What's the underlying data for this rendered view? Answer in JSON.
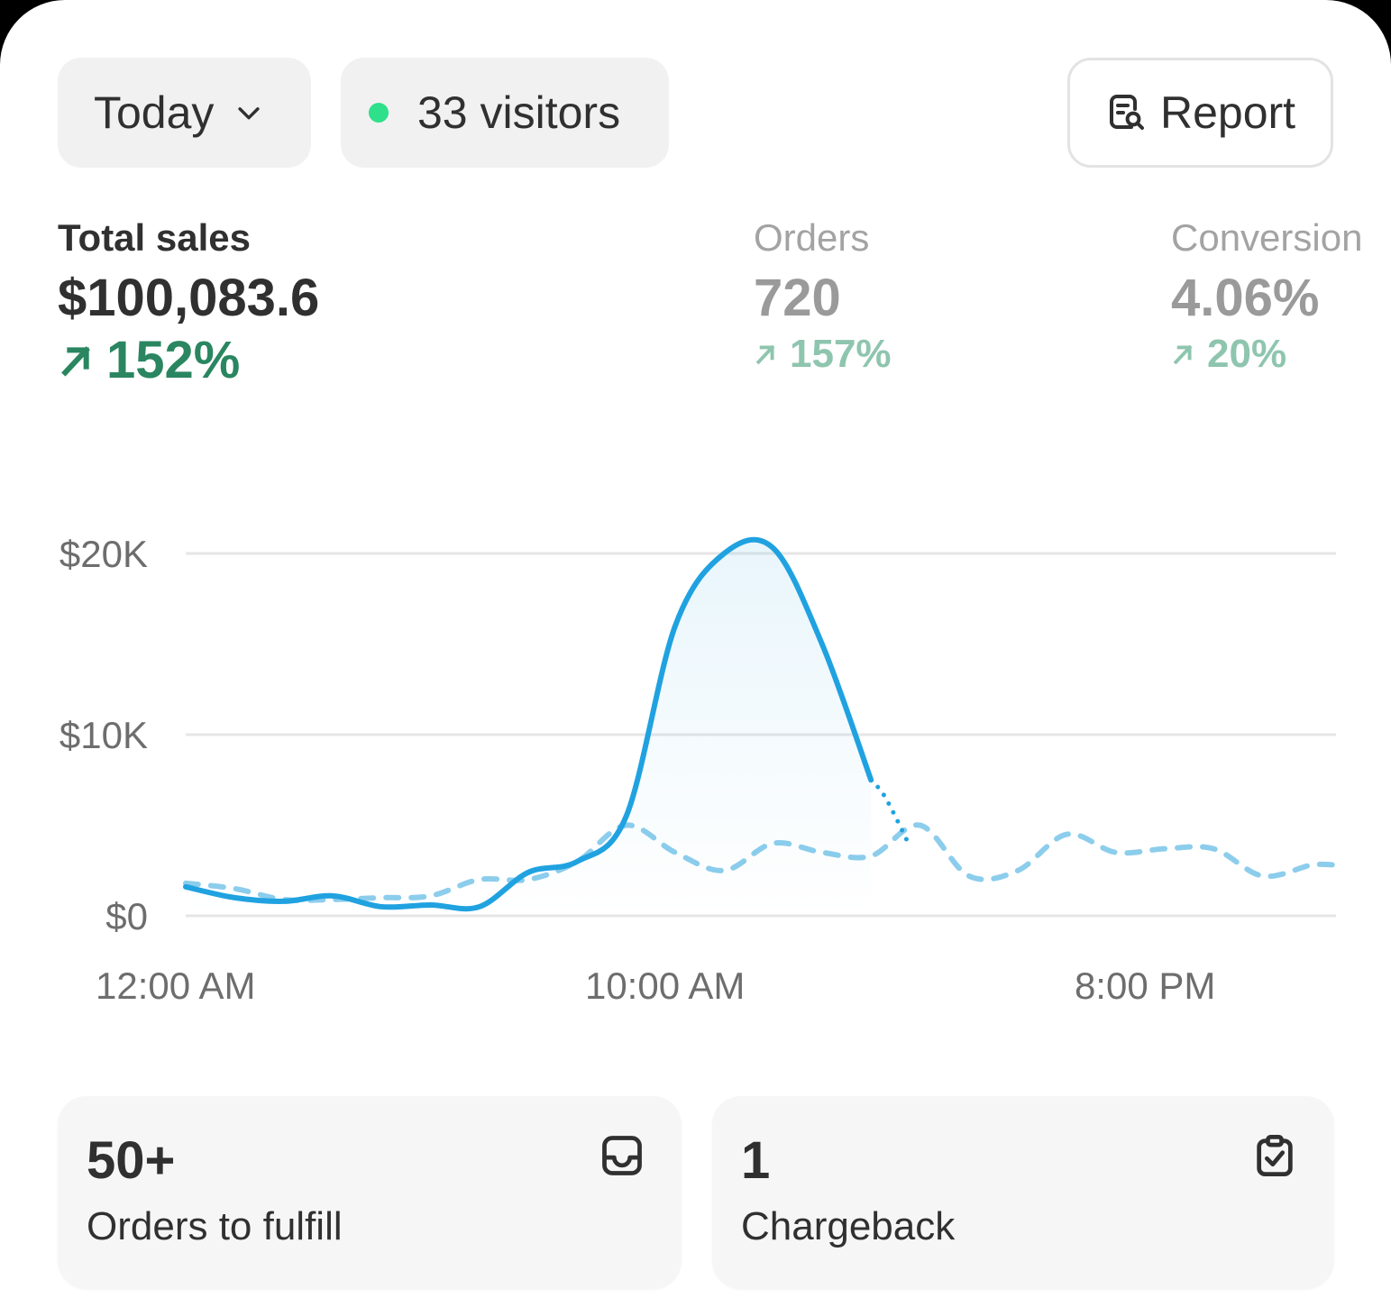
{
  "header": {
    "range": {
      "label": "Today",
      "icon": "chevron-down-icon"
    },
    "visitors": {
      "label": "33 visitors",
      "status_color": "#2ee08a"
    },
    "report": {
      "label": "Report",
      "icon": "report-search-icon"
    }
  },
  "metrics": {
    "total_sales": {
      "label": "Total sales",
      "value": "$100,083.6",
      "delta": "152%"
    },
    "orders": {
      "label": "Orders",
      "value": "720",
      "delta": "157%"
    },
    "conversion": {
      "label": "Conversion",
      "value": "4.06%",
      "delta": "20%"
    }
  },
  "chart_data": {
    "type": "line",
    "x_ticks": [
      "12:00 AM",
      "10:00 AM",
      "8:00 PM"
    ],
    "y_ticks": [
      "$0",
      "$10K",
      "$20K"
    ],
    "ylim": [
      0,
      20000
    ],
    "xlim_hours": [
      0,
      23.5
    ],
    "grid": true,
    "colors": {
      "current": "#20a2e0",
      "comparison": "#8ccdec"
    },
    "series": [
      {
        "style": "solid",
        "hours": [
          0,
          1,
          2,
          3,
          4,
          5,
          6,
          7,
          8,
          9,
          10,
          11,
          12,
          13,
          14
        ],
        "values": [
          1600,
          1000,
          800,
          1100,
          500,
          600,
          500,
          2400,
          3000,
          5500,
          16000,
          20000,
          20300,
          15000,
          7500
        ]
      },
      {
        "style": "dotted",
        "hours": [
          14,
          14.3,
          14.8
        ],
        "values": [
          7500,
          6500,
          3800
        ]
      },
      {
        "style": "dashed",
        "hours": [
          0,
          1,
          2,
          3,
          4,
          5,
          6,
          7,
          8,
          9,
          10,
          11,
          12,
          13,
          14,
          15,
          16,
          17,
          18,
          19,
          20,
          21,
          22,
          23,
          23.5
        ],
        "values": [
          1800,
          1500,
          900,
          900,
          1000,
          1100,
          2000,
          2000,
          3000,
          5000,
          3500,
          2500,
          4000,
          3500,
          3300,
          5000,
          2200,
          2500,
          4500,
          3500,
          3700,
          3700,
          2200,
          2800,
          2800
        ]
      }
    ]
  },
  "tiles": [
    {
      "count": "50+",
      "label": "Orders to fulfill",
      "icon": "inbox-icon"
    },
    {
      "count": "1",
      "label": "Chargeback",
      "icon": "clipboard-check-icon"
    }
  ]
}
